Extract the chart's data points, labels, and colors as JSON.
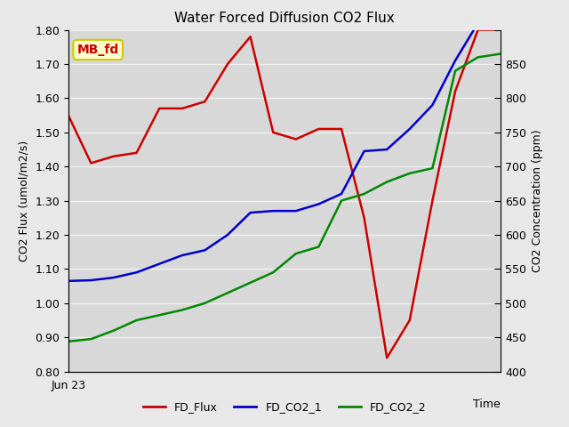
{
  "title": "Water Forced Diffusion CO2 Flux",
  "xlabel": "Time",
  "ylabel_left": "CO2 Flux (umol/m2/s)",
  "ylabel_right": "CO2 Concentration (ppm)",
  "ylim_left": [
    0.8,
    1.8
  ],
  "x_label_start": "Jun 23",
  "annotation": "MB_fd",
  "annotation_bg": "#ffffcc",
  "annotation_border": "#cccc00",
  "annotation_text_color": "#cc0000",
  "fig_bg_color": "#e8e8e8",
  "plot_bg_color": "#d8d8d8",
  "grid_color": "#f0f0f0",
  "fd_flux_x": [
    0,
    1,
    2,
    3,
    4,
    5,
    6,
    7,
    8,
    9,
    10,
    11,
    12,
    13,
    14,
    15,
    16,
    17,
    18,
    19
  ],
  "fd_flux_y": [
    1.55,
    1.41,
    1.43,
    1.44,
    1.57,
    1.57,
    1.59,
    1.7,
    1.78,
    1.5,
    1.48,
    1.51,
    1.51,
    1.25,
    0.84,
    0.95,
    1.3,
    1.62,
    1.8,
    1.8
  ],
  "fd_co2_1_x": [
    0,
    1,
    2,
    3,
    4,
    5,
    6,
    7,
    8,
    9,
    10,
    11,
    12,
    13,
    14,
    15,
    16,
    17,
    18,
    19
  ],
  "fd_co2_1_y": [
    1.065,
    1.067,
    1.075,
    1.09,
    1.115,
    1.14,
    1.155,
    1.2,
    1.265,
    1.27,
    1.27,
    1.29,
    1.32,
    1.445,
    1.45,
    1.51,
    1.58,
    1.71,
    1.82,
    1.835
  ],
  "fd_co2_2_x": [
    0,
    1,
    2,
    3,
    4,
    5,
    6,
    7,
    8,
    9,
    10,
    11,
    12,
    13,
    14,
    15,
    16,
    17,
    18,
    19
  ],
  "fd_co2_2_y": [
    0.888,
    0.895,
    0.92,
    0.95,
    0.965,
    0.98,
    1.0,
    1.03,
    1.06,
    1.09,
    1.145,
    1.165,
    1.3,
    1.32,
    1.355,
    1.38,
    1.395,
    1.68,
    1.72,
    1.73
  ],
  "flux_color": "#cc0000",
  "co2_1_color": "#0000cc",
  "co2_2_color": "#008800",
  "line_width": 1.8,
  "left_ticks": [
    0.8,
    0.9,
    1.0,
    1.1,
    1.2,
    1.3,
    1.4,
    1.5,
    1.6,
    1.7,
    1.8
  ],
  "left_tick_labels": [
    "0.80",
    "0.90",
    "1.00",
    "1.10",
    "1.20",
    "1.30",
    "1.40",
    "1.50",
    "1.60",
    "1.70",
    "1.80"
  ],
  "right_tick_labels": [
    "400",
    "450",
    "500",
    "550",
    "600",
    "650",
    "700",
    "750",
    "800",
    "850",
    ""
  ]
}
